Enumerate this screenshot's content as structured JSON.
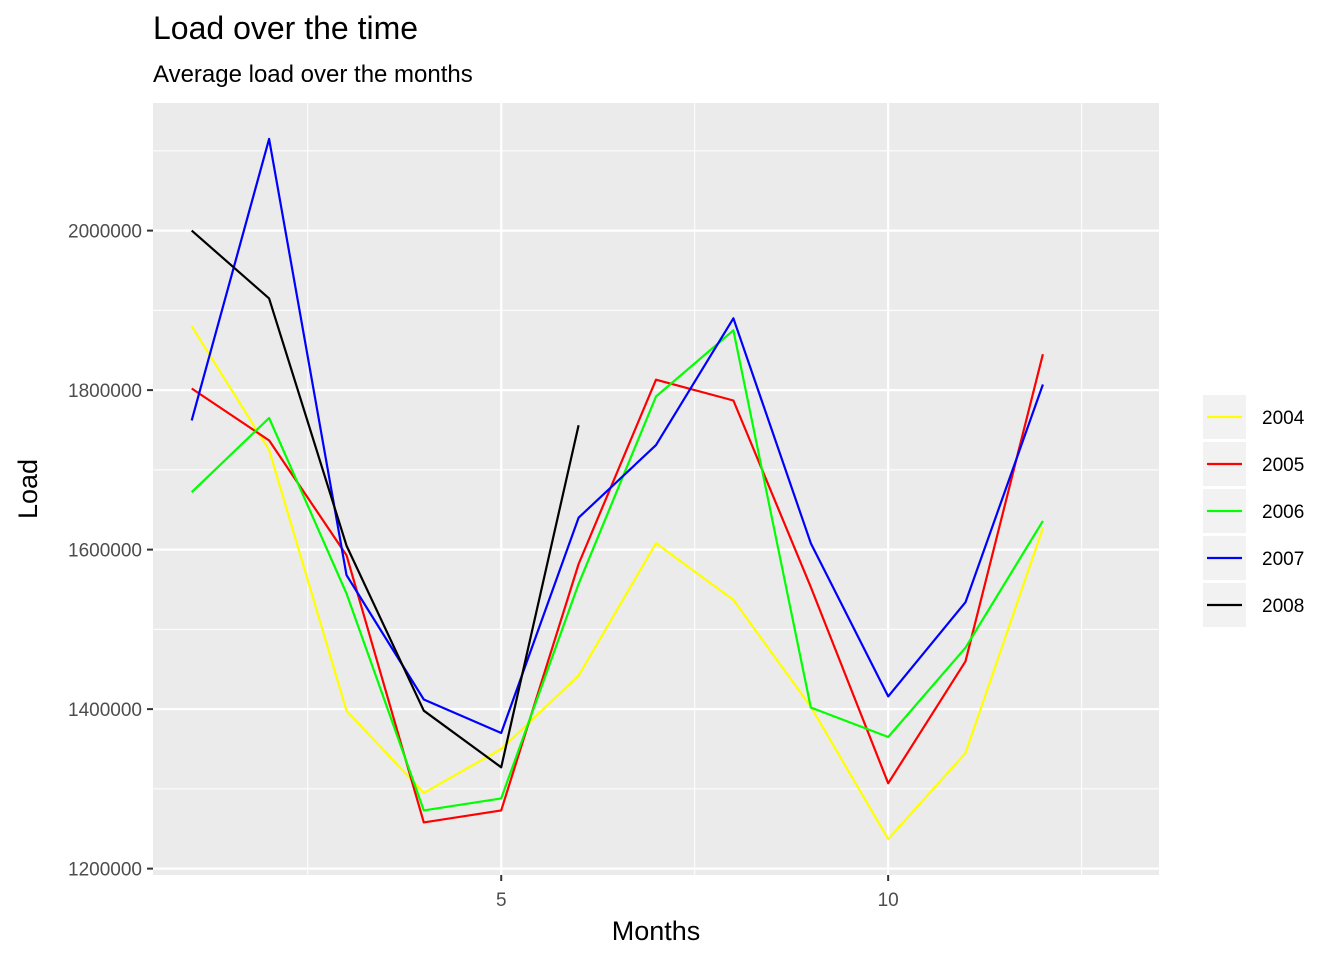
{
  "chart_data": {
    "type": "line",
    "title": "Load over the time",
    "subtitle": "Average load over the months",
    "xlabel": "Months",
    "ylabel": "Load",
    "x": [
      1,
      2,
      3,
      4,
      5,
      6,
      7,
      8,
      9,
      10,
      11,
      12
    ],
    "xlim": [
      0.5,
      13.5
    ],
    "ylim": [
      1192000,
      2160000
    ],
    "x_ticks": [
      5,
      10
    ],
    "x_tick_labels": [
      "5",
      "10"
    ],
    "y_ticks": [
      1200000,
      1400000,
      1600000,
      1800000,
      2000000
    ],
    "y_tick_labels": [
      "1200000",
      "1400000",
      "1600000",
      "1800000",
      "2000000"
    ],
    "grid": true,
    "legend_position": "right",
    "series": [
      {
        "name": "2004",
        "color": "#FFFF00",
        "values": [
          1880000,
          1725000,
          1398000,
          1295000,
          1350000,
          1442000,
          1608000,
          1537000,
          1403000,
          1237000,
          1345000,
          1627000
        ]
      },
      {
        "name": "2005",
        "color": "#FF0000",
        "values": [
          1802000,
          1737000,
          1593000,
          1258000,
          1273000,
          1582000,
          1813000,
          1787000,
          1553000,
          1307000,
          1460000,
          1845000
        ]
      },
      {
        "name": "2006",
        "color": "#00FF00",
        "values": [
          1672000,
          1765000,
          1545000,
          1273000,
          1288000,
          1557000,
          1792000,
          1875000,
          1402000,
          1365000,
          1477000,
          1636000
        ]
      },
      {
        "name": "2007",
        "color": "#0000FF",
        "values": [
          1762000,
          2115000,
          1568000,
          1412000,
          1370000,
          1640000,
          1731000,
          1890000,
          1608000,
          1416000,
          1534000,
          1807000
        ]
      },
      {
        "name": "2008",
        "color": "#000000",
        "values": [
          2000000,
          1915000,
          1605000,
          1398000,
          1327000,
          1756000,
          null,
          null,
          null,
          null,
          null,
          null
        ]
      }
    ]
  }
}
